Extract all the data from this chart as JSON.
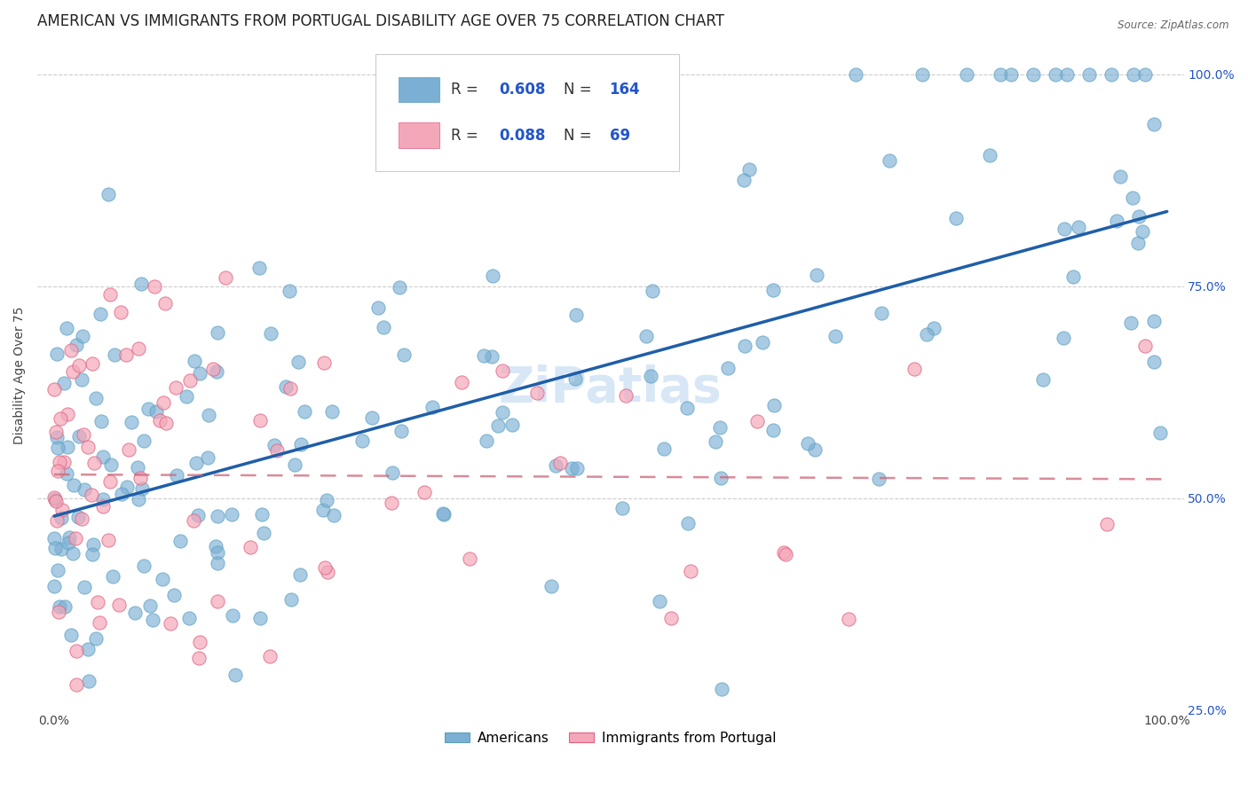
{
  "title": "AMERICAN VS IMMIGRANTS FROM PORTUGAL DISABILITY AGE OVER 75 CORRELATION CHART",
  "source": "Source: ZipAtlas.com",
  "ylabel": "Disability Age Over 75",
  "blue_R": 0.608,
  "blue_N": 164,
  "pink_R": 0.088,
  "pink_N": 69,
  "blue_color": "#7bafd4",
  "blue_edge_color": "#5a9fc0",
  "pink_color": "#f4a7b9",
  "pink_edge_color": "#e06080",
  "blue_line_color": "#1f5ea8",
  "pink_line_color": "#cc6677",
  "legend_label_blue": "Americans",
  "legend_label_pink": "Immigrants from Portugal",
  "watermark": "ZiPatlas",
  "background_color": "#ffffff",
  "title_fontsize": 12,
  "axis_label_fontsize": 10,
  "tick_fontsize": 10,
  "watermark_fontsize": 40,
  "watermark_color": "#b8d4f0",
  "watermark_alpha": 0.55,
  "right_ytick_color": "#2255cc",
  "right_ytick_fontsize": 10,
  "legend_text_color": "#333333",
  "legend_value_color": "#2255cc",
  "ylim_low": 0.28,
  "ylim_high": 1.04,
  "xlim_low": -0.015,
  "xlim_high": 1.015
}
